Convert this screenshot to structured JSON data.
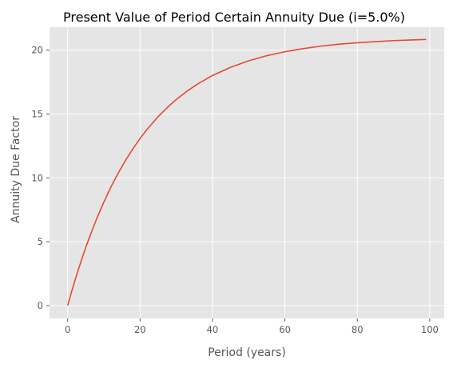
{
  "chart_data": {
    "type": "line",
    "title": "Present Value of Period Certain Annuity Due (i=5.0%)",
    "xlabel": "Period (years)",
    "ylabel": "Annuity Due Factor",
    "xlim": [
      -5,
      104
    ],
    "ylim": [
      -1,
      21.8
    ],
    "x_ticks": [
      0,
      20,
      40,
      60,
      80,
      100
    ],
    "y_ticks": [
      0,
      5,
      10,
      15,
      20
    ],
    "x_tick_labels": [
      "0",
      "20",
      "40",
      "60",
      "80",
      "100"
    ],
    "y_tick_labels": [
      "0",
      "5",
      "10",
      "15",
      "20"
    ],
    "grid": true,
    "background": "#e5e5e5",
    "grid_color": "#ffffff",
    "series": [
      {
        "color": "#e24a33",
        "x": [
          0,
          1,
          2,
          3,
          4,
          5,
          6,
          8,
          10,
          12,
          14,
          16,
          18,
          20,
          22,
          25,
          28,
          30,
          33,
          36,
          40,
          45,
          50,
          55,
          60,
          65,
          70,
          75,
          80,
          85,
          90,
          95,
          99
        ],
        "y": [
          0.0,
          1.0,
          1.95,
          2.86,
          3.72,
          4.55,
          5.33,
          6.79,
          8.11,
          9.31,
          10.39,
          11.38,
          12.27,
          13.09,
          13.82,
          14.8,
          15.64,
          16.14,
          16.8,
          17.37,
          18.02,
          18.66,
          19.17,
          19.57,
          19.88,
          20.12,
          20.32,
          20.47,
          20.58,
          20.67,
          20.75,
          20.8,
          20.84
        ]
      }
    ]
  }
}
